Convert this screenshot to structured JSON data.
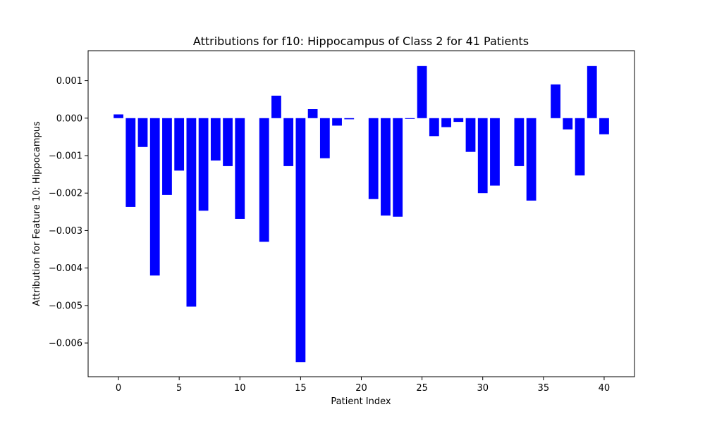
{
  "chart_data": {
    "type": "bar",
    "title": "Attributions for f10: Hippocampus of Class 2 for 41 Patients",
    "xlabel": "Patient Index",
    "ylabel": "Attribution for Feature 10: Hippocampus",
    "bar_color": "#0000ff",
    "grid": false,
    "xlim": [
      -2.5,
      42.5
    ],
    "ylim": [
      -0.0069,
      0.0018
    ],
    "x_ticks": [
      0,
      5,
      10,
      15,
      20,
      25,
      30,
      35,
      40
    ],
    "y_ticks": [
      -0.006,
      -0.005,
      -0.004,
      -0.003,
      -0.002,
      -0.001,
      0.0,
      0.001
    ],
    "y_tick_labels": [
      "−0.006",
      "−0.005",
      "−0.004",
      "−0.003",
      "−0.002",
      "−0.001",
      "0.000",
      "0.001"
    ],
    "x": [
      0,
      1,
      2,
      3,
      4,
      5,
      6,
      7,
      8,
      9,
      10,
      11,
      12,
      13,
      14,
      15,
      16,
      17,
      18,
      19,
      20,
      21,
      22,
      23,
      24,
      25,
      26,
      27,
      28,
      29,
      30,
      31,
      32,
      33,
      34,
      35,
      36,
      37,
      38,
      39,
      40
    ],
    "values": [
      0.0001,
      -0.00237,
      -0.00077,
      -0.0042,
      -0.00205,
      -0.0014,
      -0.00503,
      -0.00247,
      -0.00113,
      -0.00128,
      -0.00269,
      0.0,
      -0.0033,
      0.0006,
      -0.00128,
      -0.00651,
      0.00024,
      -0.00107,
      -0.0002,
      -3e-05,
      0.0,
      -0.00216,
      -0.0026,
      -0.00263,
      -2e-05,
      0.00139,
      -0.00048,
      -0.00024,
      -0.0001,
      -0.0009,
      -0.002,
      -0.0018,
      0.0,
      -0.00128,
      -0.0022,
      0.0,
      0.0009,
      -0.0003,
      -0.00153,
      0.00139,
      -0.00043
    ]
  }
}
